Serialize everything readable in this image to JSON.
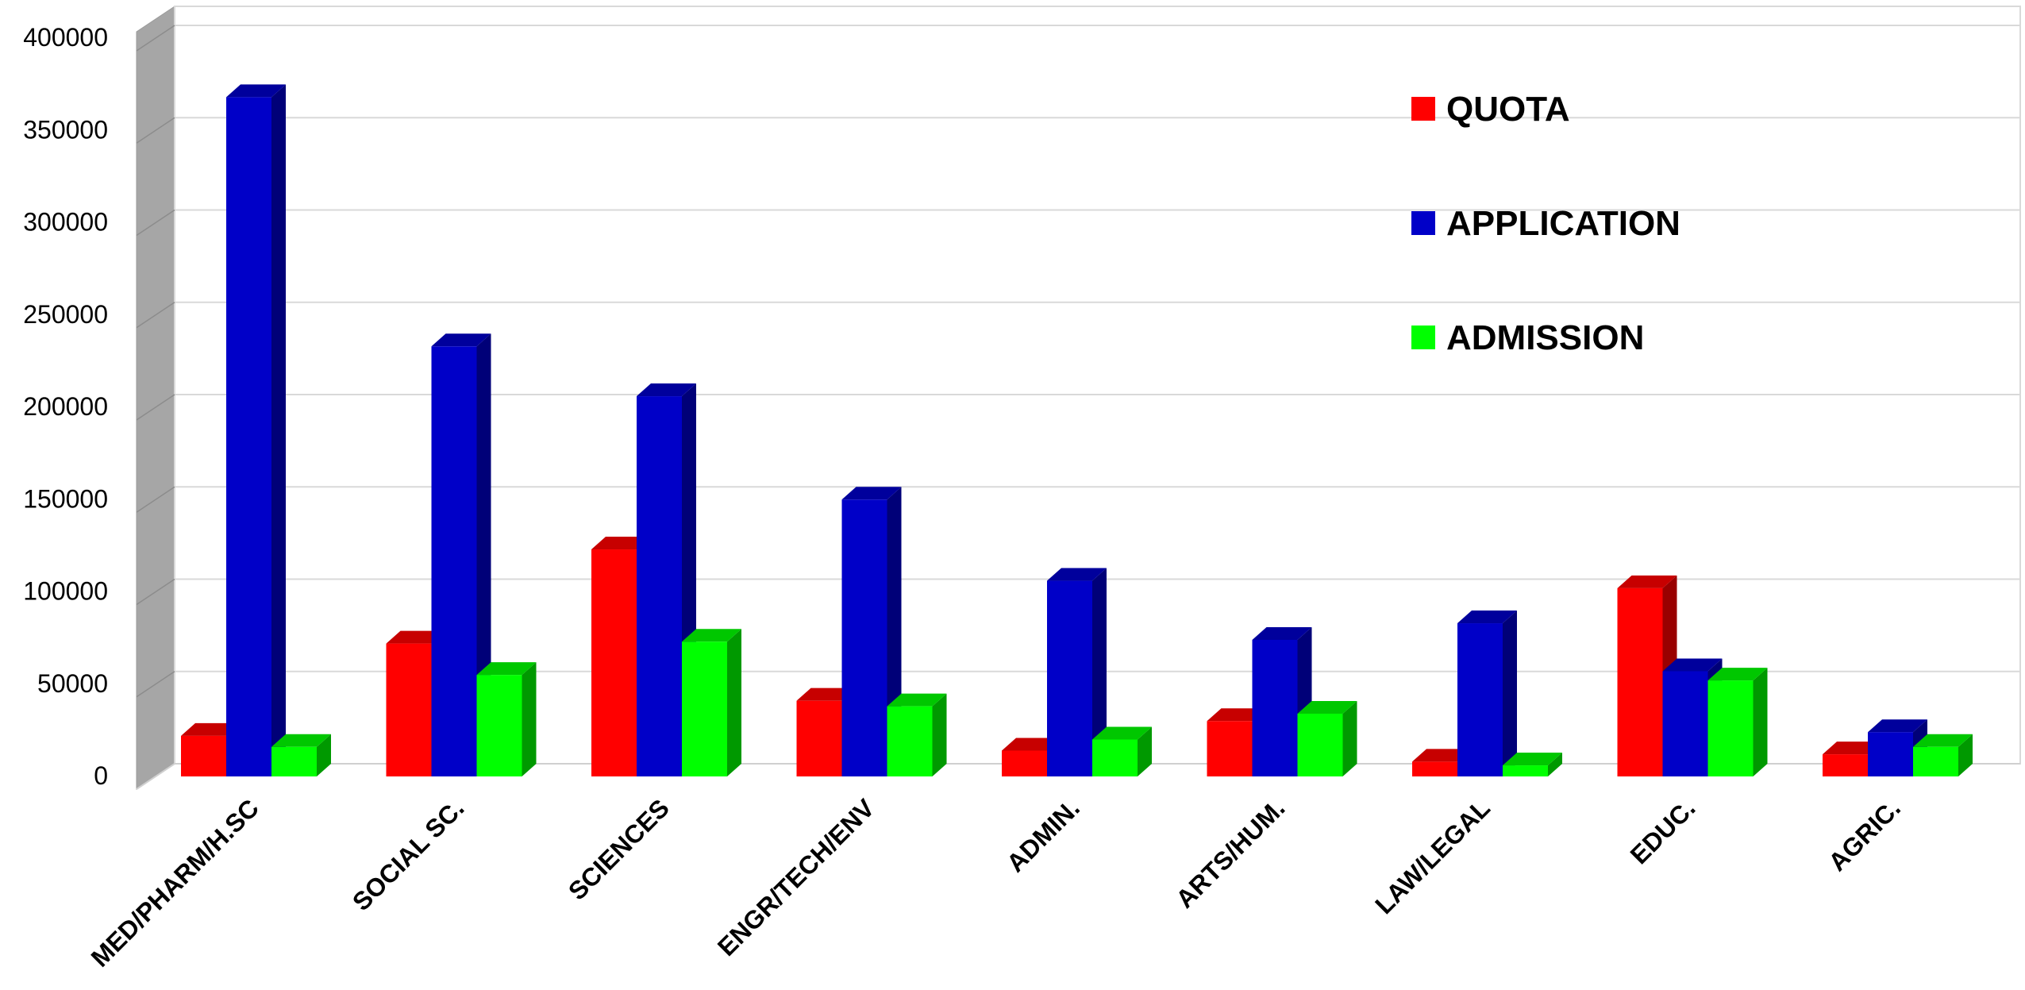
{
  "chart_data": {
    "type": "bar",
    "title": "",
    "xlabel": "",
    "ylabel": "",
    "ylim": [
      0,
      400000
    ],
    "yticks": [
      0,
      50000,
      100000,
      150000,
      200000,
      250000,
      300000,
      350000,
      400000
    ],
    "ytick_labels": [
      "0",
      "50000",
      "100000",
      "150000",
      "200000",
      "250000",
      "300000",
      "350000",
      "400000"
    ],
    "grid": true,
    "style": "3d-column",
    "legend_position": "top-right",
    "categories": [
      "MED/PHARM/H.SC",
      "SOCIAL SC.",
      "SCIENCES",
      "ENGR/TECH/ENV",
      "ADMIN.",
      "ARTS/HUM.",
      "LAW/LEGAL",
      "EDUC.",
      "AGRIC."
    ],
    "series": [
      {
        "name": "QUOTA",
        "color": "#ff0000",
        "values": [
          22000,
          72000,
          123000,
          41000,
          14000,
          30000,
          8000,
          102000,
          12000
        ]
      },
      {
        "name": "APPLICATION",
        "color": "#0000c8",
        "values": [
          368000,
          233000,
          206000,
          150000,
          106000,
          74000,
          83000,
          57000,
          24000
        ]
      },
      {
        "name": "ADMISSION",
        "color": "#00ff00",
        "values": [
          16000,
          55000,
          73000,
          38000,
          20000,
          34000,
          6000,
          52000,
          16000
        ]
      }
    ]
  }
}
